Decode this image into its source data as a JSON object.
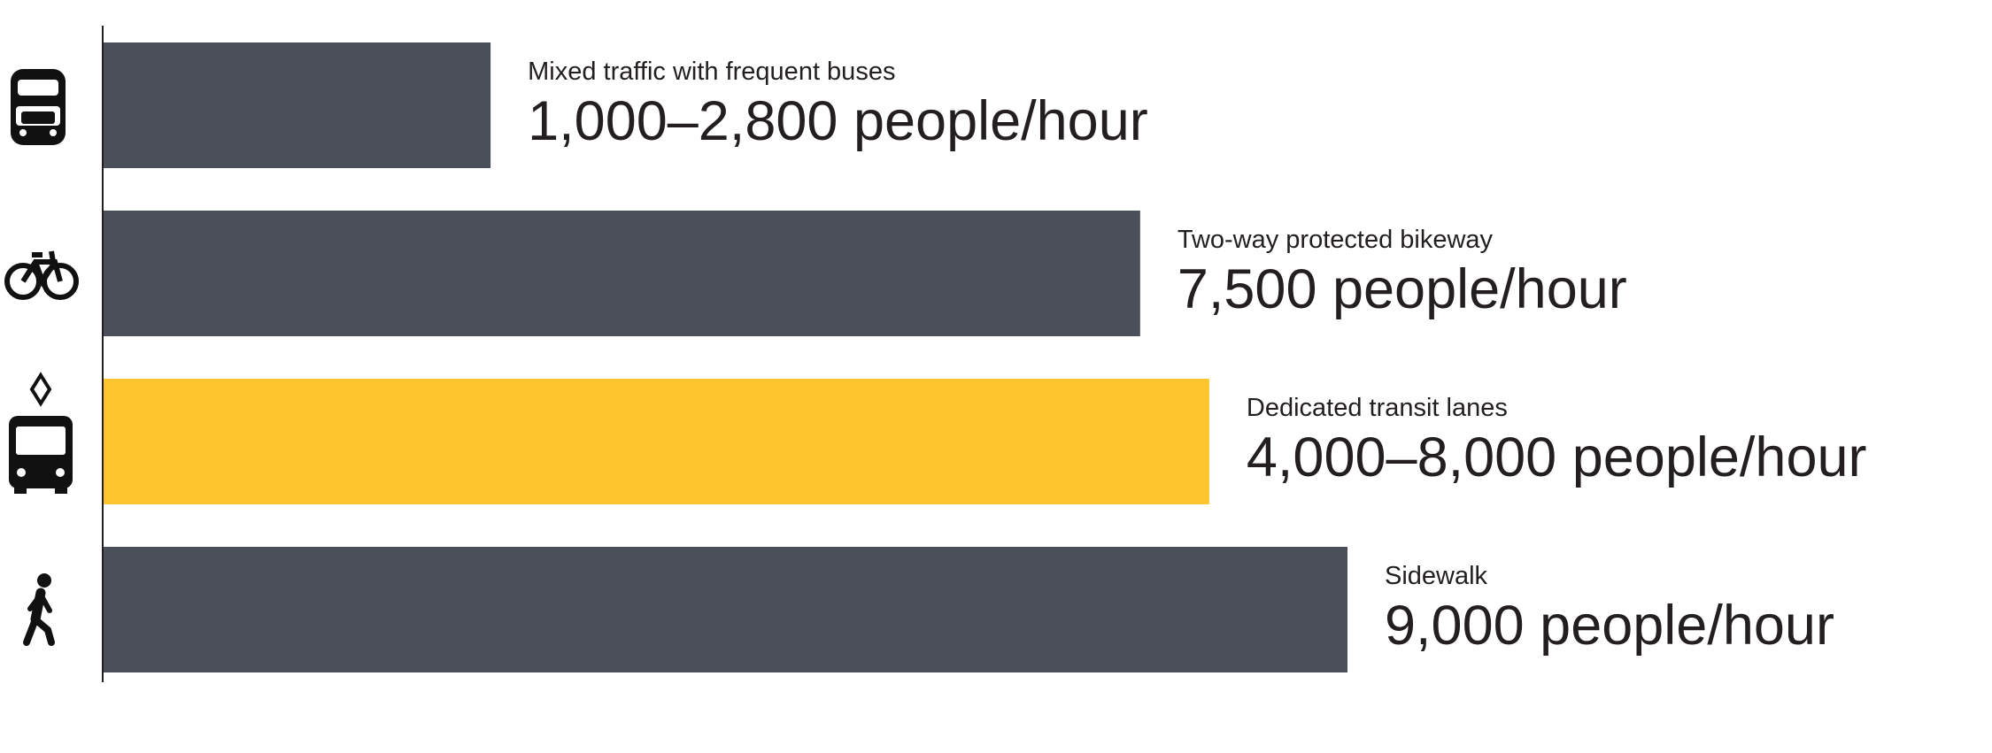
{
  "chart_data": {
    "type": "bar",
    "orientation": "horizontal",
    "categories": [
      "Mixed traffic with frequent buses",
      "Two-way protected bikeway",
      "Dedicated transit lanes",
      "Sidewalk"
    ],
    "values": [
      2800,
      7500,
      8000,
      9000
    ],
    "value_labels": [
      "1,000–2,800 people/hour",
      "7,500 people/hour",
      "4,000–8,000 people/hour",
      "9,000 people/hour"
    ],
    "colors": [
      "#4b4f5a",
      "#4b4f5a",
      "#fec52e",
      "#4b4f5a"
    ],
    "xlim": [
      0,
      9000
    ]
  }
}
